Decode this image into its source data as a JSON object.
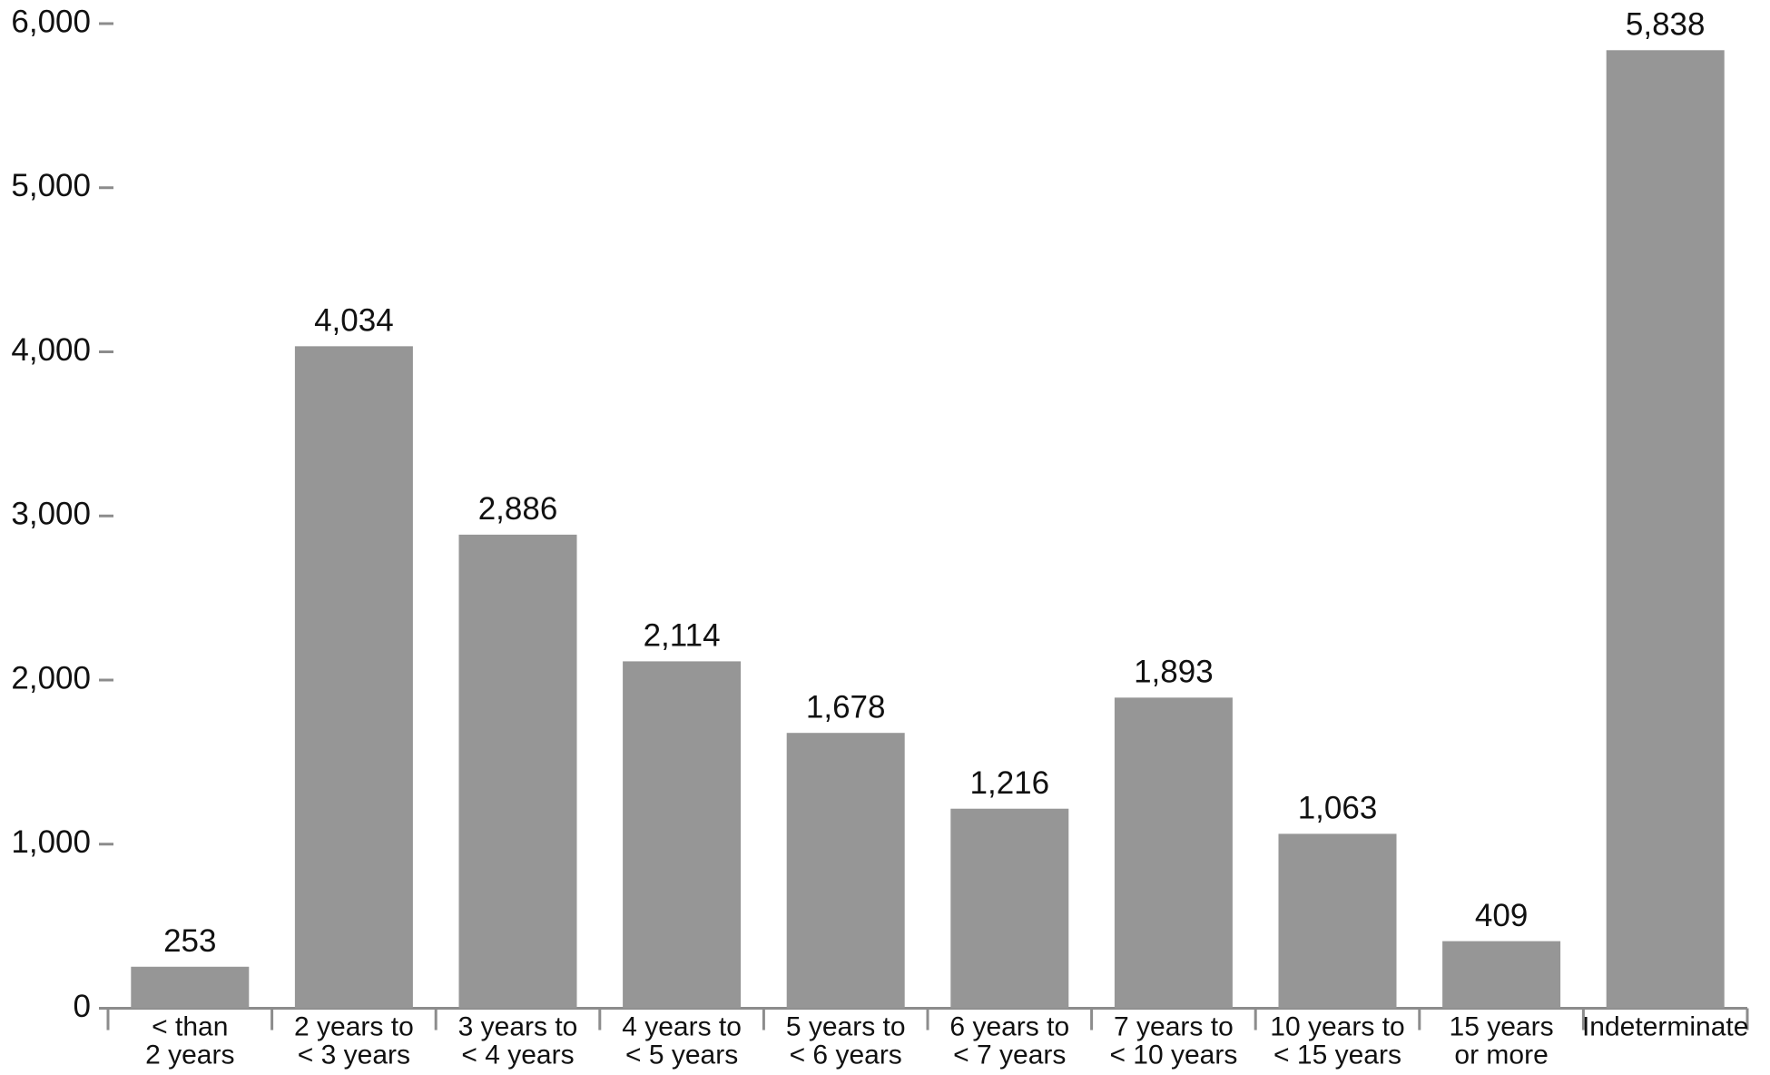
{
  "chart_data": {
    "type": "bar",
    "categories": [
      [
        "< than",
        "2 years"
      ],
      [
        "2 years to",
        "< 3 years"
      ],
      [
        "3 years to",
        "< 4 years"
      ],
      [
        "4 years to",
        "< 5 years"
      ],
      [
        "5 years to",
        "< 6 years"
      ],
      [
        "6 years to",
        "< 7 years"
      ],
      [
        "7 years to",
        "< 10 years"
      ],
      [
        "10 years to",
        "< 15 years"
      ],
      [
        "15 years",
        "or more"
      ],
      [
        "Indeterminate"
      ]
    ],
    "values": [
      253,
      4034,
      2886,
      2114,
      1678,
      1216,
      1893,
      1063,
      409,
      5838
    ],
    "value_labels": [
      "253",
      "4,034",
      "2,886",
      "2,114",
      "1,678",
      "1,216",
      "1,893",
      "1,063",
      "409",
      "5,838"
    ],
    "color": "#969696",
    "ylim": [
      0,
      6000
    ],
    "yticks": [
      0,
      {
        "value": 1000,
        "label": "1,000"
      },
      {
        "value": 2000,
        "label": "2,000"
      },
      {
        "value": 3000,
        "label": "3,000"
      },
      {
        "value": 4000,
        "label": "4,000"
      },
      {
        "value": 5000,
        "label": "5,000"
      },
      {
        "value": 6000,
        "label": "6,000"
      }
    ],
    "grid": false
  }
}
